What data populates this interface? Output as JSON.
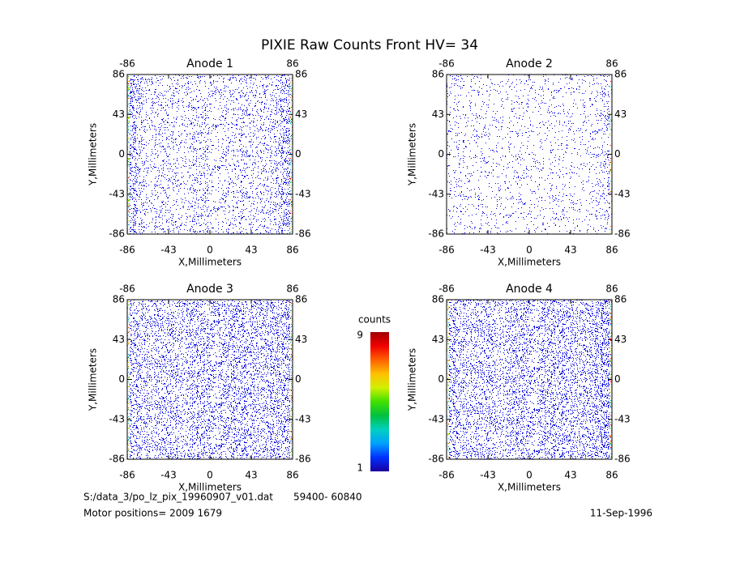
{
  "title": "PIXIE Raw Counts Front HV= 34",
  "chart_data": [
    {
      "type": "heatmap",
      "title": "Anode 1",
      "xlabel": "X,Millimeters",
      "ylabel": "Y,Millimeters",
      "xlim": [
        -86,
        86
      ],
      "ylim": [
        -86,
        86
      ],
      "xticks": [
        -86,
        -43,
        0,
        43,
        86
      ],
      "yticks": [
        -86,
        -43,
        0,
        43,
        86
      ]
    },
    {
      "type": "heatmap",
      "title": "Anode 2",
      "xlabel": "X,Millimeters",
      "ylabel": "Y,Millimeters",
      "xlim": [
        -86,
        86
      ],
      "ylim": [
        -86,
        86
      ],
      "xticks": [
        -86,
        -43,
        0,
        43,
        86
      ],
      "yticks": [
        -86,
        -43,
        0,
        43,
        86
      ]
    },
    {
      "type": "heatmap",
      "title": "Anode 3",
      "xlabel": "X,Millimeters",
      "ylabel": "Y,Millimeters",
      "xlim": [
        -86,
        86
      ],
      "ylim": [
        -86,
        86
      ],
      "xticks": [
        -86,
        -43,
        0,
        43,
        86
      ],
      "yticks": [
        -86,
        -43,
        0,
        43,
        86
      ]
    },
    {
      "type": "heatmap",
      "title": "Anode 4",
      "xlabel": "X,Millimeters",
      "ylabel": "Y,Millimeters",
      "xlim": [
        -86,
        86
      ],
      "ylim": [
        -86,
        86
      ],
      "xticks": [
        -86,
        -43,
        0,
        43,
        86
      ],
      "yticks": [
        -86,
        -43,
        0,
        43,
        86
      ]
    }
  ],
  "colorbar": {
    "label": "counts",
    "lim": [
      1,
      9
    ],
    "ticks": [
      1,
      9
    ],
    "colors": [
      "#1a00a0",
      "#0030ff",
      "#00a0ff",
      "#00d0c0",
      "#00c040",
      "#40e000",
      "#d0f000",
      "#ffc000",
      "#ff6000",
      "#f00000",
      "#a00000"
    ]
  },
  "footer": {
    "file": "S:/data_3/po_lz_pix_19960907_v01.dat",
    "range": "59400- 60840",
    "motor": "Motor positions= 2009 1679",
    "date": "11-Sep-1996"
  }
}
